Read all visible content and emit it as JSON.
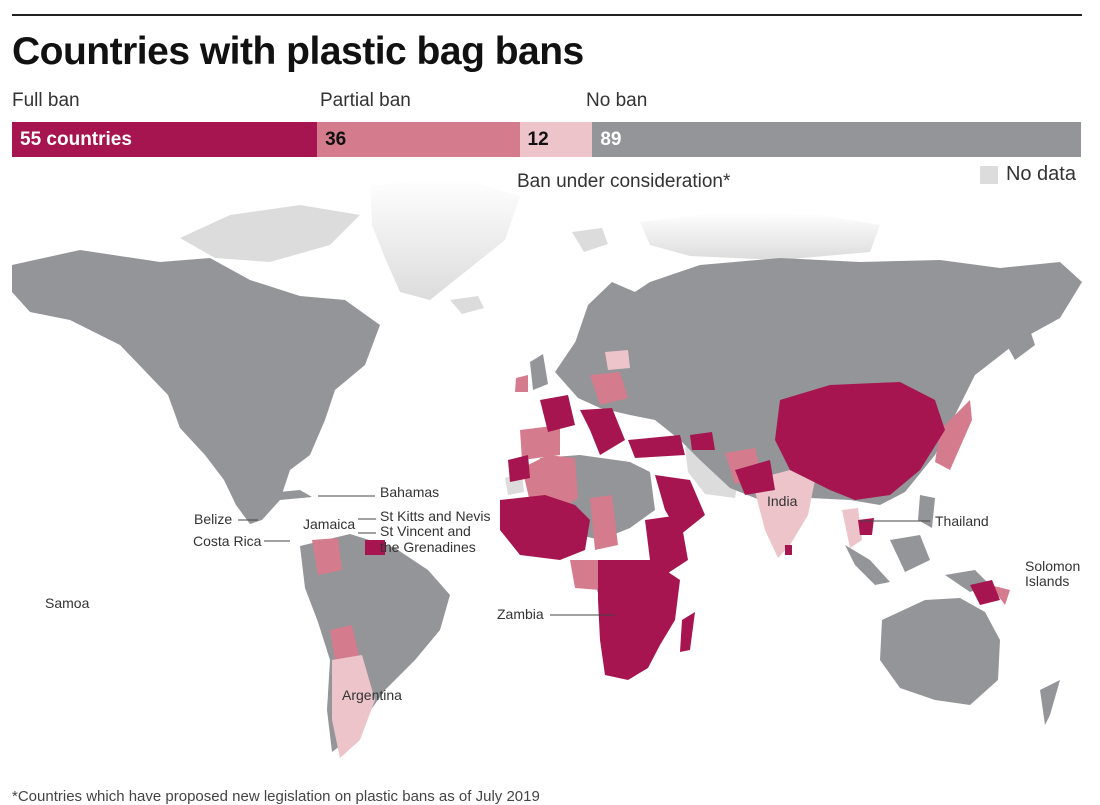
{
  "title": "Countries with plastic bag bans",
  "legend": {
    "full_ban": "Full ban",
    "partial_ban": "Partial ban",
    "no_ban": "No ban",
    "under_consideration": "Ban under consideration*",
    "no_data": "No data"
  },
  "colors": {
    "full_ban": "#a6154f",
    "partial_ban": "#d47c8d",
    "under_consideration": "#edc4c9",
    "no_ban": "#939598",
    "no_data": "#dcdcdc",
    "ocean": "#ffffff"
  },
  "counts": {
    "full_ban": 55,
    "partial_ban": 36,
    "under_consideration": 12,
    "no_ban": 89
  },
  "bar_labels": {
    "full_ban": "55 countries",
    "partial_ban": "36",
    "under_consideration": "12",
    "no_ban": "89"
  },
  "map_labels": {
    "bahamas": "Bahamas",
    "belize": "Belize",
    "jamaica": "Jamaica",
    "st_kitts": "St Kitts and Nevis",
    "st_vincent_1": "St Vincent and",
    "st_vincent_2": "the Grenadines",
    "costa_rica": "Costa Rica",
    "samoa": "Samoa",
    "argentina": "Argentina",
    "zambia": "Zambia",
    "india": "India",
    "thailand": "Thailand",
    "solomon_1": "Solomon",
    "solomon_2": "Islands"
  },
  "footnote": "*Countries which have proposed new legislation on plastic bans as of July 2019"
}
